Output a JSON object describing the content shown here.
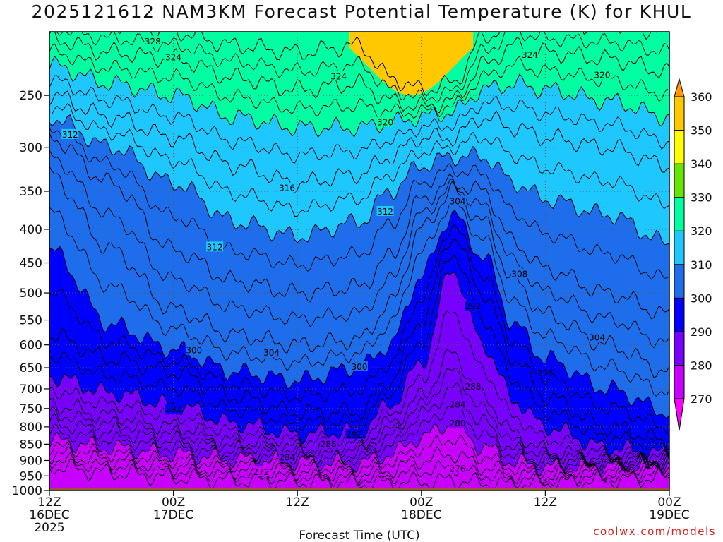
{
  "title": "2025121612 NAM3KM Forecast Potential Temperature (K) for KHUL",
  "credit": "coolwx.com/models",
  "chart_data": {
    "type": "heatmap",
    "title": "2025121612 NAM3KM Forecast Potential Temperature (K) for KHUL",
    "xlabel": "Forecast Time (UTC)",
    "ylabel": "",
    "y_scale": "log (pressure, hPa)",
    "ylim": [
      1000,
      200
    ],
    "xlim_hours": [
      0,
      60
    ],
    "y_ticks": [
      250,
      300,
      350,
      400,
      450,
      500,
      550,
      600,
      650,
      700,
      750,
      800,
      850,
      900,
      950,
      1000
    ],
    "x_ticks": [
      {
        "hour": 0,
        "line1": "12Z",
        "line2": "16DEC",
        "line3": "2025"
      },
      {
        "hour": 12,
        "line1": "00Z",
        "line2": "17DEC",
        "line3": ""
      },
      {
        "hour": 24,
        "line1": "12Z",
        "line2": "",
        "line3": ""
      },
      {
        "hour": 36,
        "line1": "00Z",
        "line2": "18DEC",
        "line3": ""
      },
      {
        "hour": 48,
        "line1": "12Z",
        "line2": "",
        "line3": ""
      },
      {
        "hour": 60,
        "line1": "00Z",
        "line2": "19DEC",
        "line3": ""
      }
    ],
    "colorbar": {
      "levels": [
        270,
        280,
        290,
        300,
        310,
        320,
        330,
        340,
        350,
        360
      ],
      "colors": [
        "#ff00ff",
        "#c800ff",
        "#7800ff",
        "#0000ff",
        "#1e6eeb",
        "#1ec8ff",
        "#00ffa0",
        "#64e600",
        "#ffff00",
        "#ffc800",
        "#ff9600"
      ],
      "extend": "both"
    },
    "contour_interval": 2,
    "anchor_hours": [
      0,
      6,
      12,
      18,
      24,
      30,
      33,
      36,
      39,
      42,
      45,
      48,
      54,
      60
    ],
    "isentropes": [
      {
        "theta": 272,
        "p": [
          920,
          940,
          955,
          965,
          970,
          975,
          975,
          970,
          965,
          975,
          980,
          975,
          965,
          955
        ]
      },
      {
        "theta": 276,
        "p": [
          880,
          900,
          920,
          930,
          935,
          945,
          930,
          900,
          880,
          920,
          945,
          950,
          940,
          930
        ]
      },
      {
        "theta": 280,
        "p": [
          840,
          860,
          880,
          895,
          905,
          910,
          880,
          830,
          790,
          860,
          905,
          920,
          915,
          910
        ]
      },
      {
        "theta": 284,
        "p": [
          790,
          815,
          840,
          870,
          885,
          880,
          830,
          770,
          700,
          790,
          870,
          900,
          905,
          905
        ]
      },
      {
        "theta": 288,
        "p": [
          740,
          770,
          800,
          840,
          860,
          850,
          790,
          720,
          620,
          720,
          820,
          870,
          895,
          900
        ]
      },
      {
        "theta": 292,
        "p": [
          670,
          710,
          740,
          790,
          820,
          810,
          740,
          640,
          460,
          600,
          730,
          800,
          860,
          880
        ]
      },
      {
        "theta": 296,
        "p": [
          580,
          630,
          660,
          720,
          760,
          760,
          680,
          550,
          410,
          500,
          630,
          720,
          800,
          840
        ]
      },
      {
        "theta": 300,
        "p": [
          430,
          560,
          610,
          660,
          680,
          650,
          600,
          470,
          380,
          440,
          560,
          630,
          700,
          760
        ]
      },
      {
        "theta": 304,
        "p": [
          330,
          430,
          530,
          580,
          600,
          590,
          520,
          400,
          350,
          390,
          480,
          540,
          600,
          660
        ]
      },
      {
        "theta": 308,
        "p": [
          290,
          340,
          430,
          480,
          500,
          490,
          440,
          360,
          340,
          350,
          420,
          460,
          500,
          540
        ]
      },
      {
        "theta": 312,
        "p": [
          270,
          300,
          340,
          390,
          410,
          390,
          350,
          320,
          310,
          310,
          340,
          360,
          380,
          420
        ]
      },
      {
        "theta": 316,
        "p": [
          250,
          270,
          290,
          320,
          340,
          330,
          310,
          290,
          290,
          270,
          280,
          290,
          300,
          320
        ]
      },
      {
        "theta": 320,
        "p": [
          225,
          240,
          250,
          270,
          280,
          280,
          275,
          270,
          265,
          245,
          240,
          245,
          255,
          270
        ]
      },
      {
        "theta": 324,
        "p": [
          205,
          215,
          220,
          235,
          245,
          240,
          255,
          260,
          255,
          225,
          210,
          215,
          220,
          230
        ]
      },
      {
        "theta": 328,
        "p": [
          190,
          195,
          200,
          210,
          215,
          210,
          235,
          245,
          240,
          205,
          190,
          195,
          195,
          200
        ]
      }
    ],
    "contour_labels": [
      {
        "text": "328",
        "hour": 10.0,
        "p": 207
      },
      {
        "text": "324",
        "hour": 12.0,
        "p": 219
      },
      {
        "text": "324",
        "hour": 28.0,
        "p": 234
      },
      {
        "text": "320",
        "hour": 32.5,
        "p": 275
      },
      {
        "text": "324",
        "hour": 46.5,
        "p": 217
      },
      {
        "text": "320",
        "hour": 53.5,
        "p": 233
      },
      {
        "text": "312",
        "hour": 2.0,
        "p": 287
      },
      {
        "text": "316",
        "hour": 23.0,
        "p": 346
      },
      {
        "text": "312",
        "hour": 32.5,
        "p": 376
      },
      {
        "text": "304",
        "hour": 39.5,
        "p": 363
      },
      {
        "text": "312",
        "hour": 16.0,
        "p": 426
      },
      {
        "text": "308",
        "hour": 45.5,
        "p": 468
      },
      {
        "text": "292",
        "hour": 41.0,
        "p": 524
      },
      {
        "text": "304",
        "hour": 53.0,
        "p": 585
      },
      {
        "text": "300",
        "hour": 14.0,
        "p": 612
      },
      {
        "text": "304",
        "hour": 21.5,
        "p": 617
      },
      {
        "text": "300",
        "hour": 30.0,
        "p": 648
      },
      {
        "text": "296",
        "hour": 48.0,
        "p": 662
      },
      {
        "text": "288",
        "hour": 41.0,
        "p": 695
      },
      {
        "text": "292",
        "hour": 12.0,
        "p": 752
      },
      {
        "text": "284",
        "hour": 39.5,
        "p": 740
      },
      {
        "text": "280",
        "hour": 39.5,
        "p": 790
      },
      {
        "text": "292",
        "hour": 29.5,
        "p": 822
      },
      {
        "text": "288",
        "hour": 27.0,
        "p": 850
      },
      {
        "text": "284",
        "hour": 23.0,
        "p": 891
      },
      {
        "text": "272",
        "hour": 20.5,
        "p": 938
      },
      {
        "text": "276",
        "hour": 39.5,
        "p": 927
      }
    ],
    "ground_color": "#a0522d"
  }
}
